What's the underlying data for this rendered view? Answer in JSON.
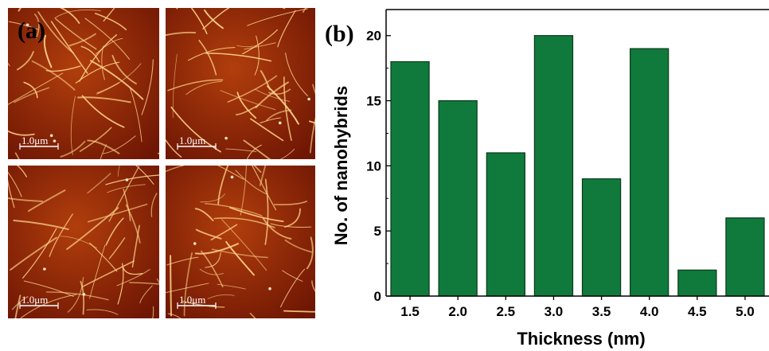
{
  "panel_a": {
    "label": "(a)",
    "scale_bar_label": "1.0μm",
    "images": [
      {
        "name": "afm-image-top-left"
      },
      {
        "name": "afm-image-top-right"
      },
      {
        "name": "afm-image-bottom-left"
      },
      {
        "name": "afm-image-bottom-right"
      }
    ]
  },
  "panel_b": {
    "label": "(b)"
  },
  "colors": {
    "bar_fill": "#0f7a3c",
    "bar_stroke": "#0a3a1a",
    "afm_dark": "#6e1604",
    "afm_mid": "#b13e0c",
    "afm_fiber": "#ffd48a"
  },
  "chart_data": {
    "type": "bar",
    "categories": [
      "1.5",
      "2.0",
      "2.5",
      "3.0",
      "3.5",
      "4.0",
      "4.5",
      "5.0"
    ],
    "values": [
      18,
      15,
      11,
      20,
      9,
      19,
      2,
      6
    ],
    "xlabel": "Thickness (nm)",
    "ylabel": "No. of nanohybrids",
    "ylim": [
      0,
      22
    ],
    "yticks": [
      0,
      5,
      10,
      15,
      20
    ],
    "grid": false,
    "legend": "none"
  }
}
